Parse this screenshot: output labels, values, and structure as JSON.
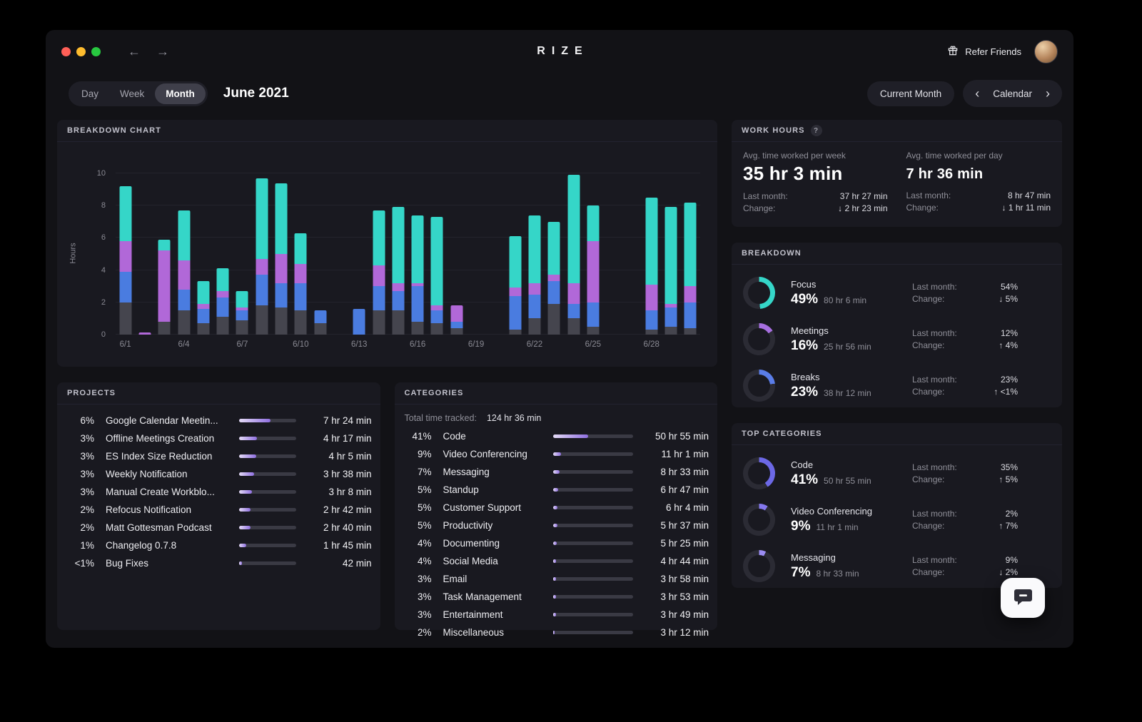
{
  "colors": {
    "focus_teal": "#35d6c8",
    "meetings_purple": "#b168d8",
    "breaks_blue": "#4a7ce0",
    "other_gray": "#45454e",
    "traffic_close": "#ff5f57",
    "traffic_minimize": "#febc2e",
    "traffic_zoom": "#28c840"
  },
  "labels": {
    "last_month": "Last month:",
    "change": "Change:"
  },
  "header": {
    "app_title": "RIZE",
    "refer_friends_label": "Refer Friends"
  },
  "toolbar": {
    "tabs": [
      {
        "label": "Day",
        "active": false
      },
      {
        "label": "Week",
        "active": false
      },
      {
        "label": "Month",
        "active": true
      }
    ],
    "period_title": "June 2021",
    "current_month_label": "Current Month",
    "calendar_label": "Calendar",
    "back_arrow": "←",
    "forward_arrow": "→",
    "chevron_left": "‹",
    "chevron_right": "›"
  },
  "breakdown_chart": {
    "title": "BREAKDOWN CHART",
    "chart_data": {
      "type": "stacked-bar",
      "ylabel": "Hours",
      "ylim": [
        0,
        10
      ],
      "yticks": [
        0,
        2,
        4,
        6,
        8,
        10
      ],
      "xtick_labels": [
        "6/1",
        "6/4",
        "6/7",
        "6/10",
        "6/13",
        "6/16",
        "6/19",
        "6/22",
        "6/25",
        "6/28"
      ],
      "series_order": [
        "other",
        "breaks",
        "meetings",
        "focus"
      ],
      "series_colors": {
        "other": "#45454e",
        "breaks": "#4a7ce0",
        "meetings": "#b168d8",
        "focus": "#35d6c8"
      },
      "days": [
        {
          "date": "6/1",
          "values": [
            2.0,
            1.9,
            1.9,
            3.4
          ]
        },
        {
          "date": "6/2",
          "values": [
            0,
            0,
            0.15,
            0
          ]
        },
        {
          "date": "6/3",
          "values": [
            0.8,
            0,
            4.4,
            0.7
          ]
        },
        {
          "date": "6/4",
          "values": [
            1.5,
            1.3,
            1.8,
            3.1
          ]
        },
        {
          "date": "6/5",
          "values": [
            0.7,
            0.9,
            0.3,
            1.4
          ]
        },
        {
          "date": "6/6",
          "values": [
            1.1,
            1.2,
            0.4,
            1.4
          ]
        },
        {
          "date": "6/7",
          "values": [
            0.9,
            0.6,
            0.2,
            1.0
          ]
        },
        {
          "date": "6/8",
          "values": [
            1.8,
            1.9,
            1.0,
            5.0
          ]
        },
        {
          "date": "6/9",
          "values": [
            1.7,
            1.5,
            1.8,
            4.4
          ]
        },
        {
          "date": "6/10",
          "values": [
            1.5,
            1.7,
            1.2,
            1.9
          ]
        },
        {
          "date": "6/11",
          "values": [
            0.7,
            0.8,
            0,
            0
          ]
        },
        {
          "date": "6/12",
          "values": [
            0,
            0,
            0,
            0
          ]
        },
        {
          "date": "6/13",
          "values": [
            0,
            1.6,
            0,
            0
          ]
        },
        {
          "date": "6/14",
          "values": [
            1.5,
            1.5,
            1.3,
            3.4
          ]
        },
        {
          "date": "6/15",
          "values": [
            1.5,
            1.2,
            0.5,
            4.7
          ]
        },
        {
          "date": "6/16",
          "values": [
            0.8,
            2.2,
            0.2,
            4.2
          ]
        },
        {
          "date": "6/17",
          "values": [
            0.7,
            0.8,
            0.3,
            5.5
          ]
        },
        {
          "date": "6/18",
          "values": [
            0.4,
            0.4,
            1.0,
            0
          ]
        },
        {
          "date": "6/19",
          "values": [
            0,
            0,
            0,
            0
          ]
        },
        {
          "date": "6/20",
          "values": [
            0,
            0,
            0,
            0
          ]
        },
        {
          "date": "6/21",
          "values": [
            0.3,
            2.1,
            0.5,
            3.2
          ]
        },
        {
          "date": "6/22",
          "values": [
            1.0,
            1.5,
            0.7,
            4.2
          ]
        },
        {
          "date": "6/23",
          "values": [
            1.9,
            1.4,
            0.4,
            3.3
          ]
        },
        {
          "date": "6/24",
          "values": [
            1.0,
            0.9,
            1.3,
            6.7
          ]
        },
        {
          "date": "6/25",
          "values": [
            0.5,
            1.5,
            3.8,
            2.2
          ]
        },
        {
          "date": "6/26",
          "values": [
            0,
            0,
            0,
            0
          ]
        },
        {
          "date": "6/27",
          "values": [
            0,
            0,
            0,
            0
          ]
        },
        {
          "date": "6/28",
          "values": [
            0.3,
            1.2,
            1.6,
            5.4
          ]
        },
        {
          "date": "6/29",
          "values": [
            0.5,
            1.2,
            0.2,
            6.0
          ]
        },
        {
          "date": "6/30",
          "values": [
            0.4,
            1.6,
            1.0,
            5.2
          ]
        }
      ]
    }
  },
  "projects": {
    "title": "PROJECTS",
    "rows": [
      {
        "pct": "6%",
        "name": "Google Calendar Meetin...",
        "time": "7 hr 24 min",
        "fill": 55
      },
      {
        "pct": "3%",
        "name": "Offline Meetings Creation",
        "time": "4 hr 17 min",
        "fill": 32
      },
      {
        "pct": "3%",
        "name": "ES Index Size Reduction",
        "time": "4 hr 5 min",
        "fill": 30
      },
      {
        "pct": "3%",
        "name": "Weekly Notification",
        "time": "3 hr 38 min",
        "fill": 27
      },
      {
        "pct": "3%",
        "name": "Manual Create Workblo...",
        "time": "3 hr 8 min",
        "fill": 23
      },
      {
        "pct": "2%",
        "name": "Refocus Notification",
        "time": "2 hr 42 min",
        "fill": 20
      },
      {
        "pct": "2%",
        "name": "Matt Gottesman Podcast",
        "time": "2 hr 40 min",
        "fill": 20
      },
      {
        "pct": "1%",
        "name": "Changelog 0.7.8",
        "time": "1 hr 45 min",
        "fill": 13
      },
      {
        "pct": "<1%",
        "name": "Bug Fixes",
        "time": "42 min",
        "fill": 5
      }
    ]
  },
  "categories": {
    "title": "CATEGORIES",
    "total_label": "Total time tracked:",
    "total_value": "124 hr 36 min",
    "rows": [
      {
        "pct": "41%",
        "name": "Code",
        "time": "50 hr 55 min",
        "fill": 44
      },
      {
        "pct": "9%",
        "name": "Video Conferencing",
        "time": "11 hr 1 min",
        "fill": 10
      },
      {
        "pct": "7%",
        "name": "Messaging",
        "time": "8 hr 33 min",
        "fill": 8
      },
      {
        "pct": "5%",
        "name": "Standup",
        "time": "6 hr 47 min",
        "fill": 6
      },
      {
        "pct": "5%",
        "name": "Customer Support",
        "time": "6 hr 4 min",
        "fill": 5.5
      },
      {
        "pct": "5%",
        "name": "Productivity",
        "time": "5 hr 37 min",
        "fill": 5
      },
      {
        "pct": "4%",
        "name": "Documenting",
        "time": "5 hr 25 min",
        "fill": 4.5
      },
      {
        "pct": "4%",
        "name": "Social Media",
        "time": "4 hr 44 min",
        "fill": 4
      },
      {
        "pct": "3%",
        "name": "Email",
        "time": "3 hr 58 min",
        "fill": 3.5
      },
      {
        "pct": "3%",
        "name": "Task Management",
        "time": "3 hr 53 min",
        "fill": 3.3
      },
      {
        "pct": "3%",
        "name": "Entertainment",
        "time": "3 hr 49 min",
        "fill": 3.2
      },
      {
        "pct": "2%",
        "name": "Miscellaneous",
        "time": "3 hr 12 min",
        "fill": 2
      }
    ]
  },
  "work_hours": {
    "title": "WORK HOURS",
    "help_text": "?",
    "week": {
      "label": "Avg. time worked per week",
      "value": "35 hr 3 min",
      "last_month": "37 hr 27 min",
      "change": "↓ 2 hr 23 min"
    },
    "day": {
      "label": "Avg. time worked per day",
      "value": "7 hr 36 min",
      "last_month": "8 hr 47 min",
      "change": "↓ 1 hr 11 min"
    }
  },
  "breakdown": {
    "title": "BREAKDOWN",
    "rows": [
      {
        "name": "Focus",
        "pct": "49%",
        "pct_num": 49,
        "time": "80 hr 6 min",
        "last_month": "54%",
        "change": "↓ 5%",
        "color": "#35d6c8"
      },
      {
        "name": "Meetings",
        "pct": "16%",
        "pct_num": 16,
        "time": "25 hr 56 min",
        "last_month": "12%",
        "change": "↑ 4%",
        "color": "#a76fe0"
      },
      {
        "name": "Breaks",
        "pct": "23%",
        "pct_num": 23,
        "time": "38 hr 12 min",
        "last_month": "23%",
        "change": "↑ <1%",
        "color": "#5a7de8"
      }
    ]
  },
  "top_categories": {
    "title": "TOP CATEGORIES",
    "rows": [
      {
        "name": "Code",
        "pct": "41%",
        "pct_num": 41,
        "time": "50 hr 55 min",
        "last_month": "35%",
        "change": "↑ 5%",
        "color": "#6c68e6"
      },
      {
        "name": "Video Conferencing",
        "pct": "9%",
        "pct_num": 9,
        "time": "11 hr 1 min",
        "last_month": "2%",
        "change": "↑ 7%",
        "color": "#8578ee"
      },
      {
        "name": "Messaging",
        "pct": "7%",
        "pct_num": 7,
        "time": "8 hr 33 min",
        "last_month": "9%",
        "change": "↓ 2%",
        "color": "#9b8cf2"
      }
    ]
  }
}
